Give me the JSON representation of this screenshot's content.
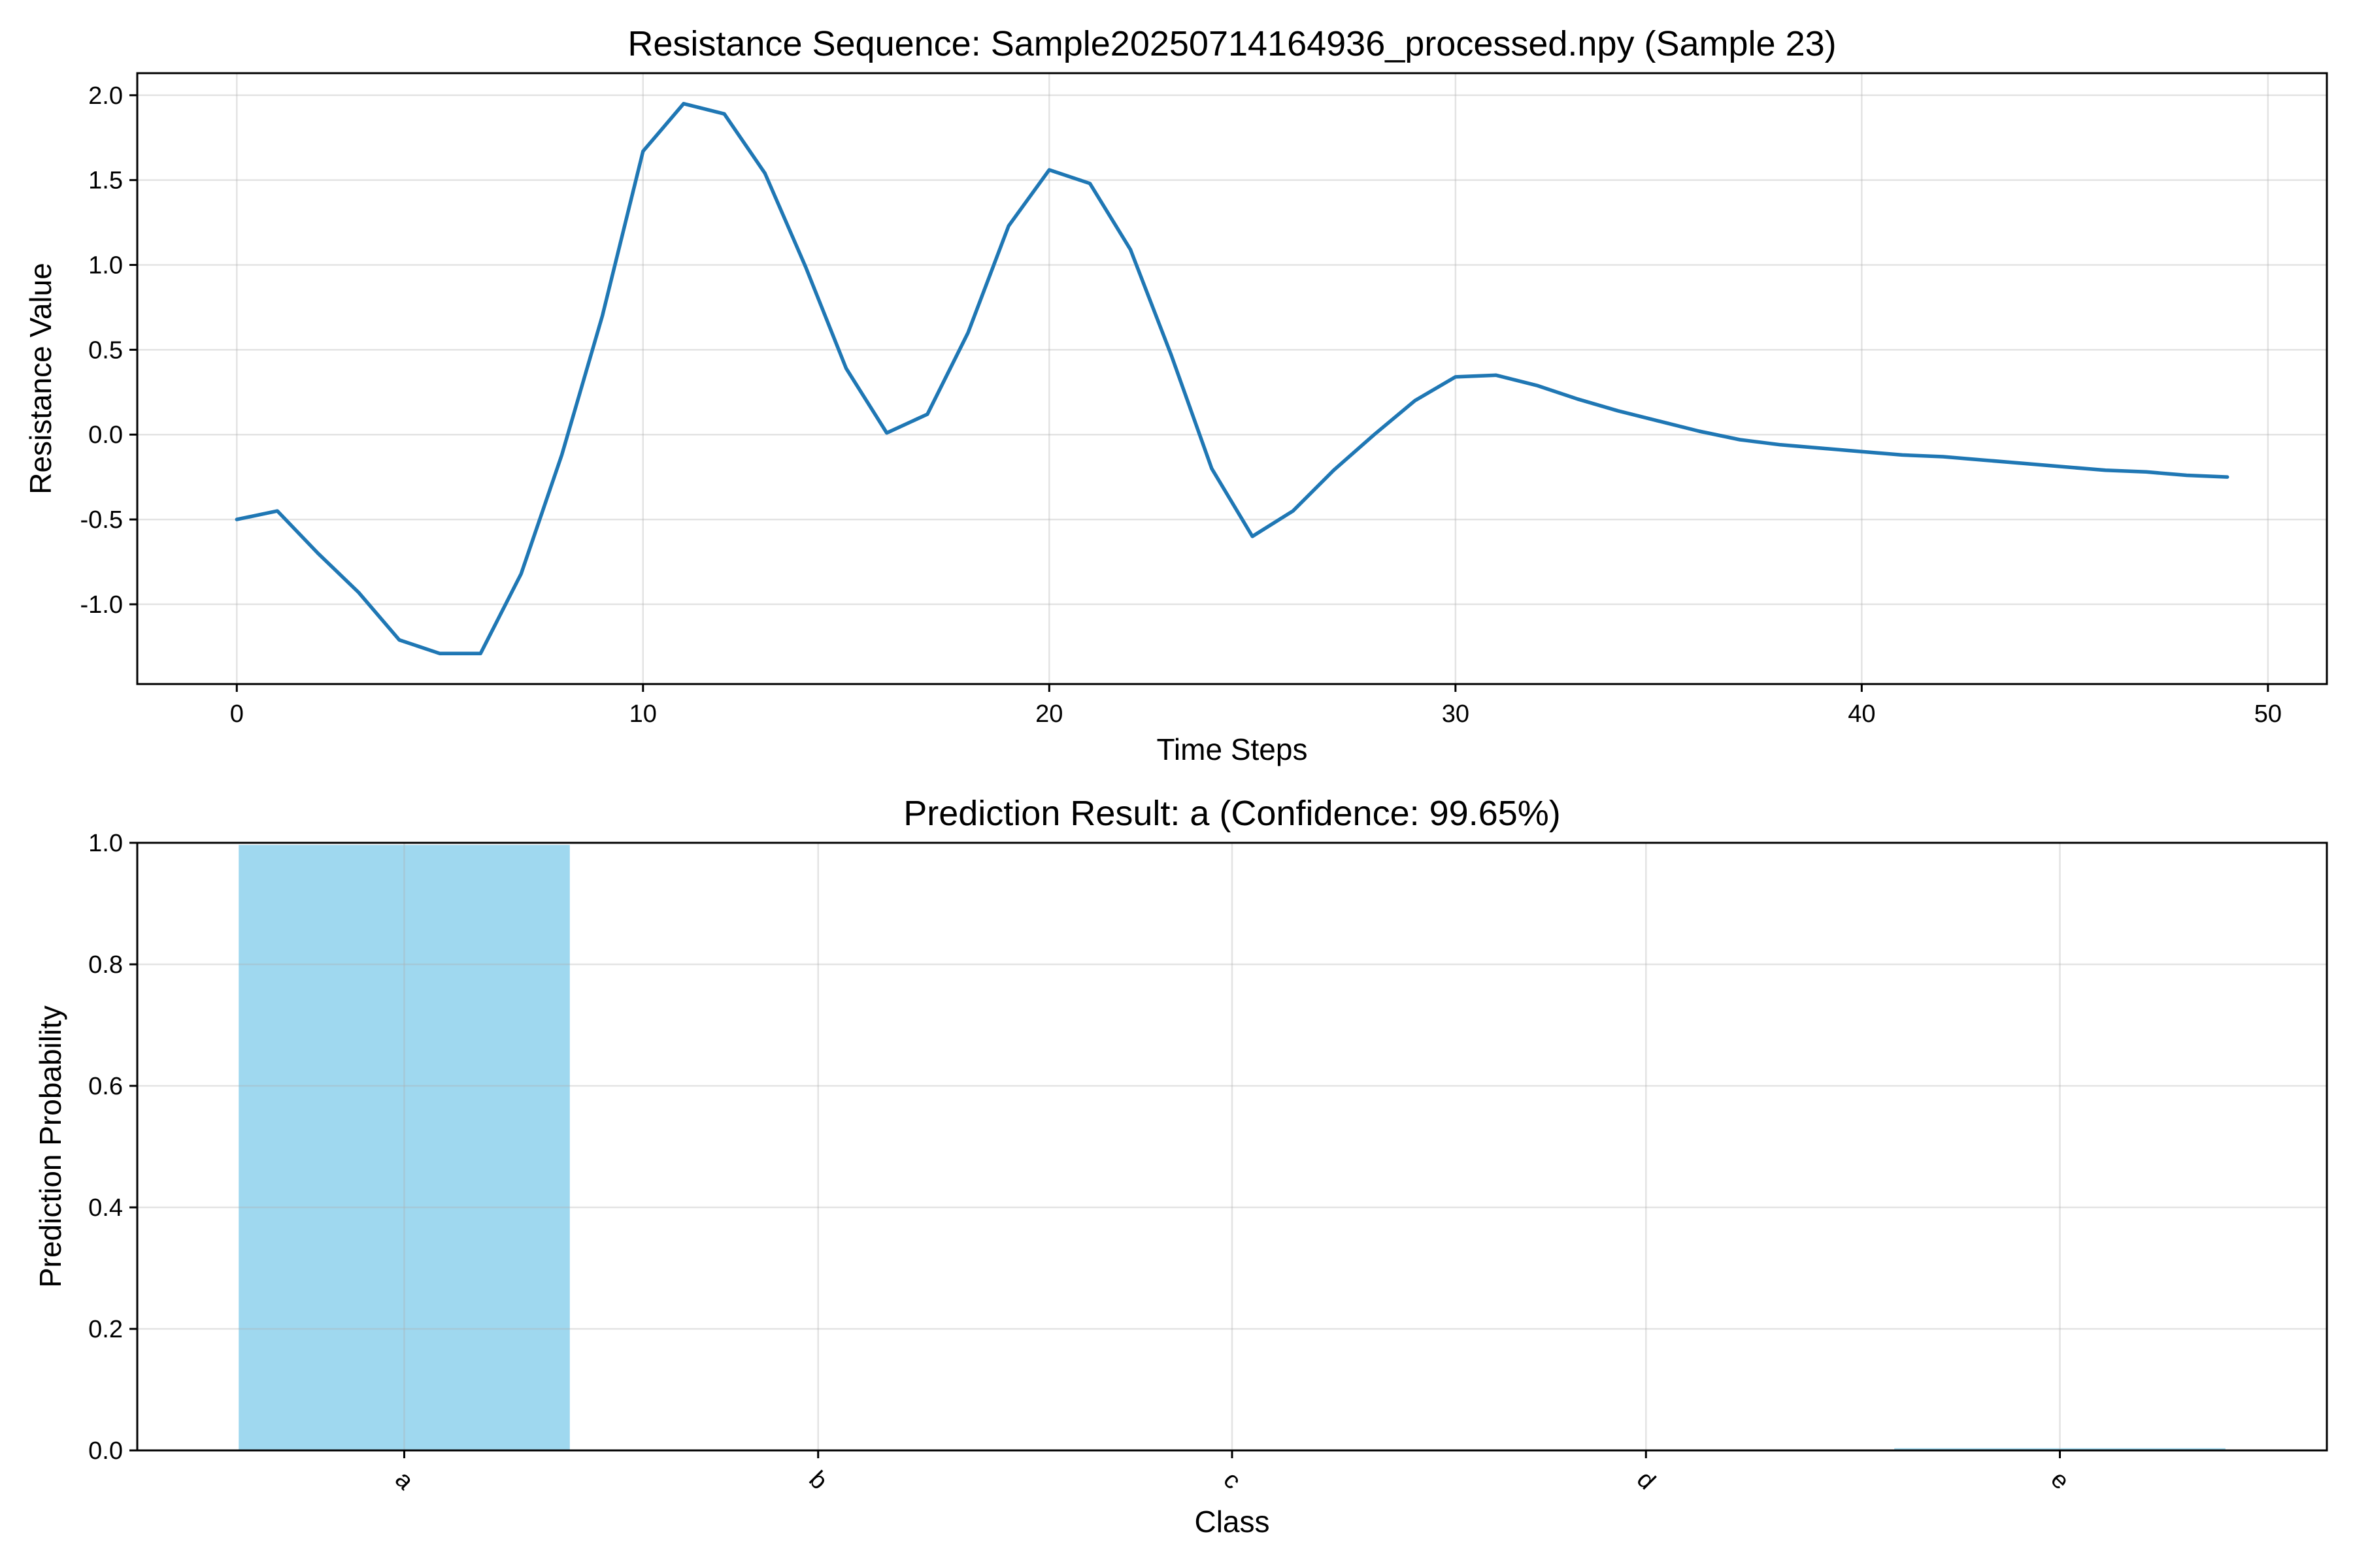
{
  "colors": {
    "line": "#1f77b4",
    "bar": "#87ceeb",
    "background": "#ffffff",
    "axis": "#000000",
    "grid": "#b0b0b0"
  },
  "chart_data": [
    {
      "type": "line",
      "title": "Resistance Sequence: Sample20250714164936_processed.npy (Sample 23)",
      "xlabel": "Time Steps",
      "ylabel": "Resistance Value",
      "xlim": [
        -2.45,
        51.45
      ],
      "ylim": [
        -1.47,
        2.13
      ],
      "xticks": [
        0,
        10,
        20,
        30,
        40,
        50
      ],
      "yticks": [
        -1.0,
        -0.5,
        0.0,
        0.5,
        1.0,
        1.5,
        2.0
      ],
      "ytick_labels": [
        "-1.0",
        "-0.5",
        "0.0",
        "0.5",
        "1.0",
        "1.5",
        "2.0"
      ],
      "grid": true,
      "series": [
        {
          "x": [
            0,
            1,
            2,
            3,
            4,
            5,
            6,
            7,
            8,
            9,
            10,
            11,
            12,
            13,
            14,
            15,
            16,
            17,
            18,
            19,
            20,
            21,
            22,
            23,
            24,
            25,
            26,
            27,
            28,
            29,
            30,
            31,
            32,
            33,
            34,
            35,
            36,
            37,
            38,
            39,
            40,
            41,
            42,
            43,
            44,
            45,
            46,
            47,
            48,
            49
          ],
          "values": [
            -0.5,
            -0.45,
            -0.7,
            -0.93,
            -1.21,
            -1.29,
            -1.29,
            -0.82,
            -0.12,
            0.7,
            1.67,
            1.95,
            1.89,
            1.54,
            0.99,
            0.39,
            0.01,
            0.12,
            0.6,
            1.23,
            1.56,
            1.48,
            1.09,
            0.47,
            -0.2,
            -0.6,
            -0.45,
            -0.21,
            0.0,
            0.2,
            0.34,
            0.35,
            0.29,
            0.21,
            0.14,
            0.08,
            0.02,
            -0.03,
            -0.06,
            -0.08,
            -0.1,
            -0.12,
            -0.13,
            -0.15,
            -0.17,
            -0.19,
            -0.21,
            -0.22,
            -0.24,
            -0.25
          ]
        }
      ]
    },
    {
      "type": "bar",
      "title": "Prediction Result: a (Confidence: 99.65%)",
      "xlabel": "Class",
      "ylabel": "Prediction Probability",
      "categories": [
        "a",
        "b",
        "c",
        "d",
        "e"
      ],
      "values": [
        0.9965,
        0.0,
        0.0,
        0.0,
        0.0035
      ],
      "ylim": [
        0.0,
        1.0
      ],
      "yticks": [
        0.0,
        0.2,
        0.4,
        0.6,
        0.8,
        1.0
      ],
      "ytick_labels": [
        "0.0",
        "0.2",
        "0.4",
        "0.6",
        "0.8",
        "1.0"
      ],
      "xtick_rotation": 45,
      "grid": true
    }
  ]
}
